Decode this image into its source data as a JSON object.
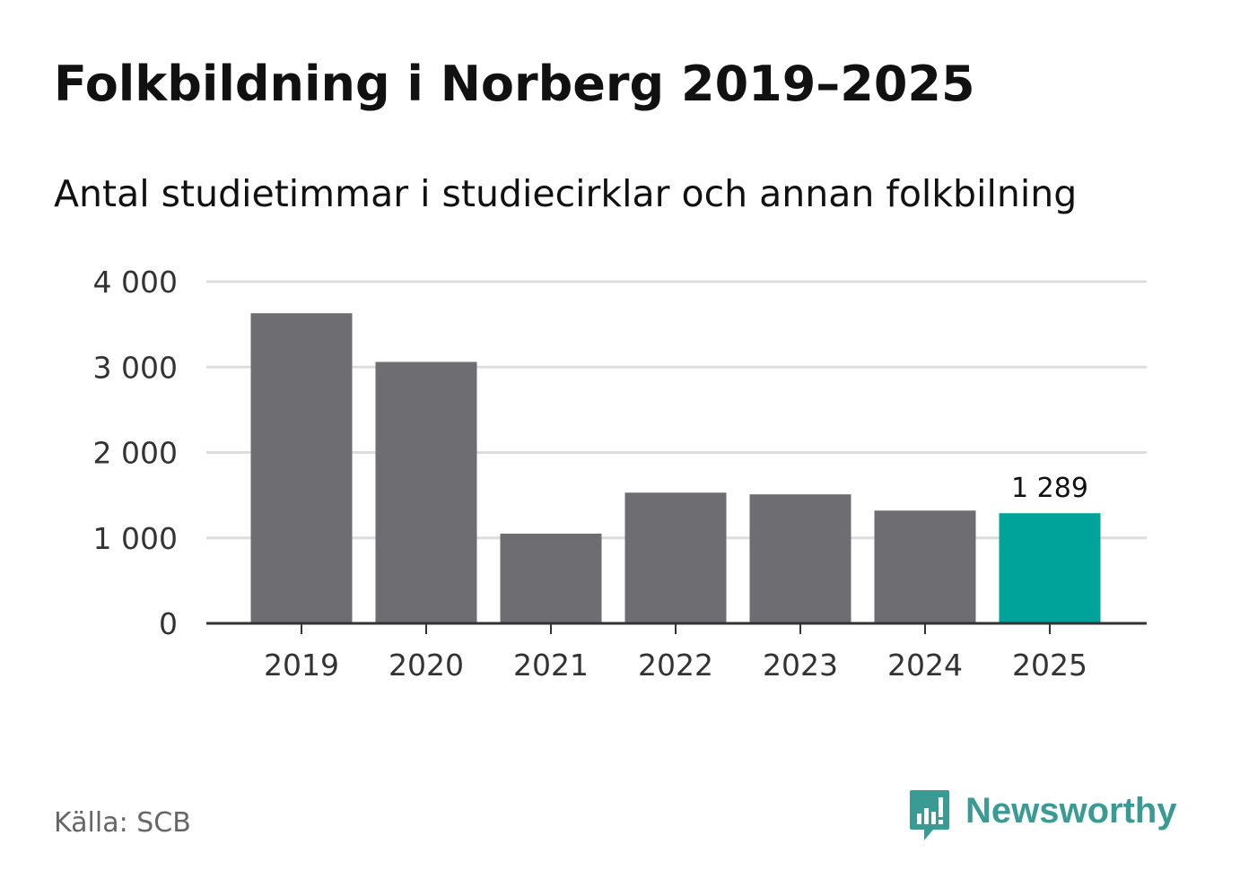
{
  "header": {
    "title": "Folkbildning i Norberg 2019–2025",
    "subtitle": "Antal studietimmar i studiecirklar och annan folkbilning"
  },
  "footer": {
    "source": "Källa: SCB",
    "brand": "Newsworthy",
    "brand_icon": "newsworthy-bar-chart-icon"
  },
  "colors": {
    "bar": "#6e6d72",
    "highlight": "#00a39a",
    "grid": "#dddddd",
    "axis": "#333333",
    "brand": "#3a9a94"
  },
  "chart_data": {
    "type": "bar",
    "title": "Folkbildning i Norberg 2019–2025",
    "subtitle": "Antal studietimmar i studiecirklar och annan folkbilning",
    "xlabel": "",
    "ylabel": "",
    "categories": [
      "2019",
      "2020",
      "2021",
      "2022",
      "2023",
      "2024",
      "2025"
    ],
    "values": [
      3630,
      3060,
      1050,
      1530,
      1510,
      1320,
      1289
    ],
    "highlight_index": 6,
    "data_labels": [
      {
        "index": 6,
        "text": "1 289"
      }
    ],
    "ylim": [
      0,
      4000
    ],
    "yticks": [
      {
        "value": 0,
        "label": "0"
      },
      {
        "value": 1000,
        "label": "1 000"
      },
      {
        "value": 2000,
        "label": "2 000"
      },
      {
        "value": 3000,
        "label": "3 000"
      },
      {
        "value": 4000,
        "label": "4 000"
      }
    ],
    "grid": true,
    "legend": "none"
  }
}
